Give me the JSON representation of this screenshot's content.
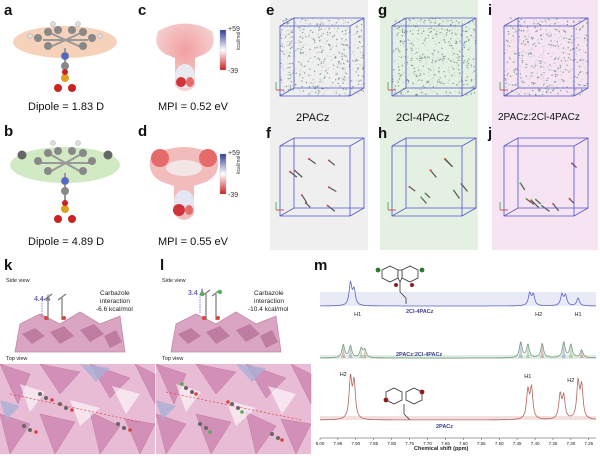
{
  "panels": {
    "a": {
      "label": "a",
      "caption": "Dipole = 1.83 D"
    },
    "b": {
      "label": "b",
      "caption": "Dipole = 4.89 D"
    },
    "c": {
      "label": "c",
      "caption": "MPI = 0.52 eV",
      "scale_max": "+59",
      "scale_min": "-39",
      "unit": "kcal/mol"
    },
    "d": {
      "label": "d",
      "caption": "MPI = 0.55 eV",
      "scale_max": "+59",
      "scale_min": "-39",
      "unit": "kcal/mol"
    },
    "e": {
      "label": "e"
    },
    "f": {
      "label": "f"
    },
    "g": {
      "label": "g"
    },
    "h": {
      "label": "h"
    },
    "i": {
      "label": "i"
    },
    "j": {
      "label": "j"
    },
    "k": {
      "label": "k",
      "side_view": "Side view",
      "top_view": "Top view",
      "distance": "4.4 Å",
      "interaction": "Carbazole\ninteraction\n-6.6 kcal/mol",
      "int_line1": "Carbazole",
      "int_line2": "interaction",
      "int_line3": "-6.6 kcal/mol"
    },
    "l": {
      "label": "l",
      "side_view": "Side view",
      "top_view": "Top view",
      "distance": "3.4 Å",
      "int_line1": "Carbazole",
      "int_line2": "interaction",
      "int_line3": "-10.4 kcal/mol"
    },
    "m": {
      "label": "m"
    }
  },
  "sim_labels": {
    "e_f": "2PACz",
    "g_h": "2Cl-4PACz",
    "i_j": "2PACz:2Cl-4PACz"
  },
  "colors": {
    "green_bg": "#e4f1e2",
    "pink_bg": "#f7e4f3",
    "gray_bg": "#eeeeee",
    "box": "#4f55c9",
    "nmr_top": "#5a63c2",
    "nmr_mid": "#6f9a7a",
    "nmr_bot": "#b5655f"
  },
  "chart_data": {
    "type": "line",
    "xlabel": "Chemical shift (ppm)",
    "x_ticks": [
      "8.00",
      "7.95",
      "7.90",
      "7.85",
      "7.80",
      "7.75",
      "7.70",
      "7.65",
      "7.60",
      "7.55",
      "7.50",
      "7.45",
      "7.40",
      "7.35",
      "7.30",
      "7.25"
    ],
    "xlim": [
      8.0,
      7.23
    ],
    "x_reversed": true,
    "series": [
      {
        "name": "2Cl-4PACz",
        "peaks": [
          [
            7.915,
            1.0
          ],
          [
            7.905,
            0.7
          ],
          [
            7.415,
            0.55
          ],
          [
            7.405,
            0.5
          ],
          [
            7.325,
            0.5
          ],
          [
            7.315,
            0.45
          ],
          [
            7.28,
            0.35
          ]
        ]
      },
      {
        "name": "2PACz:2Cl-4PACz",
        "peaks": [
          [
            7.935,
            0.5
          ],
          [
            7.915,
            0.45
          ],
          [
            7.885,
            0.35
          ],
          [
            7.875,
            0.3
          ],
          [
            7.44,
            0.6
          ],
          [
            7.42,
            0.5
          ],
          [
            7.38,
            0.55
          ],
          [
            7.32,
            0.6
          ],
          [
            7.3,
            0.5
          ],
          [
            7.27,
            0.3
          ]
        ]
      },
      {
        "name": "2PACz",
        "peaks": [
          [
            7.915,
            1.0
          ],
          [
            7.905,
            0.9
          ],
          [
            7.42,
            0.7
          ],
          [
            7.41,
            0.75
          ],
          [
            7.33,
            0.6
          ],
          [
            7.32,
            0.55
          ],
          [
            7.28,
            0.9
          ],
          [
            7.27,
            0.8
          ]
        ]
      }
    ],
    "annotations": [
      "H1",
      "H2",
      "H1",
      "H2",
      "H1",
      "H2"
    ]
  }
}
